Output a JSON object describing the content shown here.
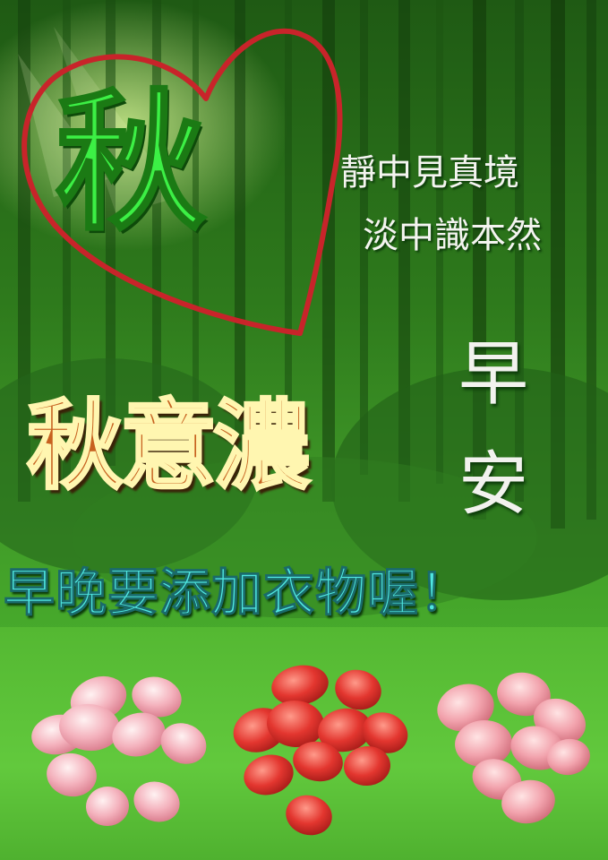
{
  "card": {
    "big_char": "秋",
    "poem_line_1": "靜中見真境",
    "poem_line_2": "淡中識本然",
    "greeting_1": "早",
    "greeting_2": "安",
    "headline": "秋意濃",
    "reminder": "早晚要添加衣物喔！"
  },
  "colors": {
    "forest": "#2e7a1c",
    "grass": "#5cc43a",
    "heart": "#c8242a",
    "big_char": "#3cf045",
    "headline": "#c7611f",
    "reminder": "#4fe6e0",
    "petals_pink": "#f4b2bd",
    "petals_red": "#e3362f"
  }
}
